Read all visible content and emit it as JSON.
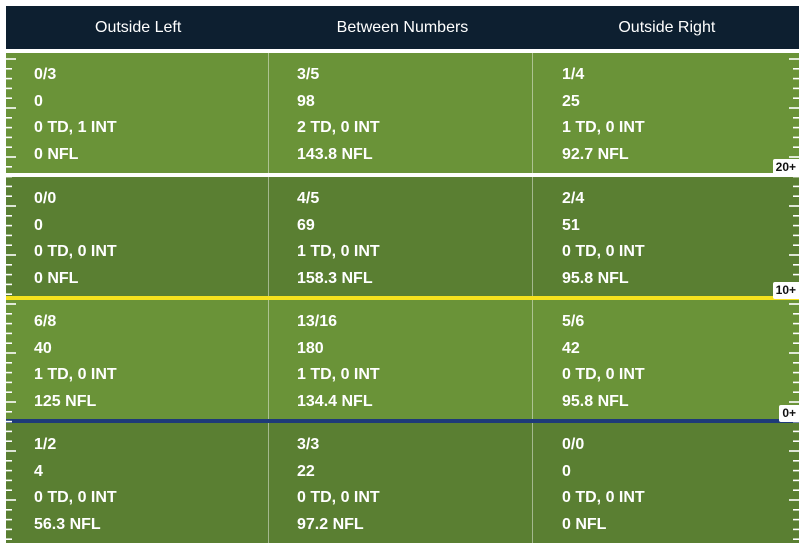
{
  "columns": [
    "Outside Left",
    "Between Numbers",
    "Outside Right"
  ],
  "zones": [
    {
      "label": "20+",
      "cells": [
        {
          "comp_att": "0/3",
          "yards": "0",
          "td_int": "0 TD, 1 INT",
          "rating": "0 NFL"
        },
        {
          "comp_att": "3/5",
          "yards": "98",
          "td_int": "2 TD, 0 INT",
          "rating": "143.8 NFL"
        },
        {
          "comp_att": "1/4",
          "yards": "25",
          "td_int": "1 TD, 0 INT",
          "rating": "92.7 NFL"
        }
      ]
    },
    {
      "label": "10+",
      "cells": [
        {
          "comp_att": "0/0",
          "yards": "0",
          "td_int": "0 TD, 0 INT",
          "rating": "0 NFL"
        },
        {
          "comp_att": "4/5",
          "yards": "69",
          "td_int": "1 TD, 0 INT",
          "rating": "158.3 NFL"
        },
        {
          "comp_att": "2/4",
          "yards": "51",
          "td_int": "0 TD, 0 INT",
          "rating": "95.8 NFL"
        }
      ]
    },
    {
      "label": "0+",
      "cells": [
        {
          "comp_att": "6/8",
          "yards": "40",
          "td_int": "1 TD, 0 INT",
          "rating": "125 NFL"
        },
        {
          "comp_att": "13/16",
          "yards": "180",
          "td_int": "1 TD, 0 INT",
          "rating": "134.4 NFL"
        },
        {
          "comp_att": "5/6",
          "yards": "42",
          "td_int": "0 TD, 0 INT",
          "rating": "95.8 NFL"
        }
      ]
    },
    {
      "label": "",
      "cells": [
        {
          "comp_att": "1/2",
          "yards": "4",
          "td_int": "0 TD, 0 INT",
          "rating": "56.3 NFL"
        },
        {
          "comp_att": "3/3",
          "yards": "22",
          "td_int": "0 TD, 0 INT",
          "rating": "97.2 NFL"
        },
        {
          "comp_att": "0/0",
          "yards": "0",
          "td_int": "0 TD, 0 INT",
          "rating": "0 NFL"
        }
      ]
    }
  ],
  "colors": {
    "header_bg": "#0d1f30",
    "turf_light": "#6a9338",
    "turf_dark": "#5a7f32",
    "line_20": "#ffffff",
    "line_10": "#f5e21e",
    "line_0": "#1e3a78"
  }
}
